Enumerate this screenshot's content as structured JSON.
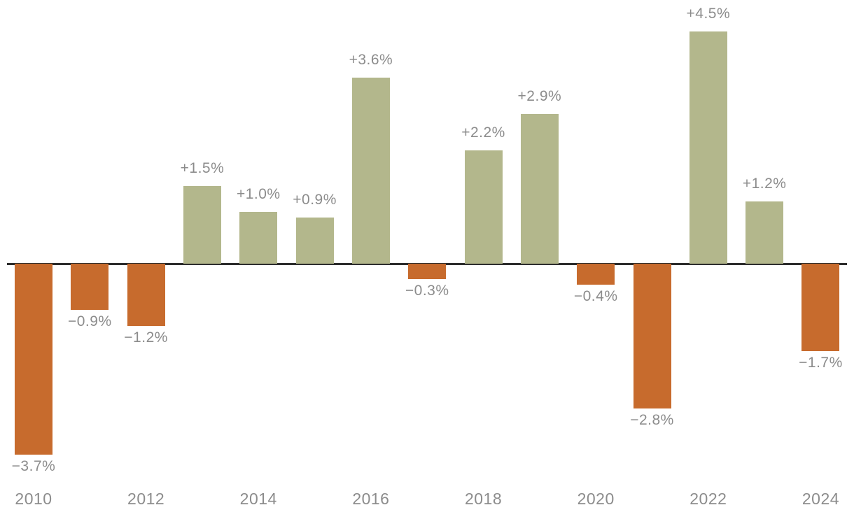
{
  "chart_data": {
    "type": "bar",
    "title": "",
    "xlabel": "",
    "ylabel": "",
    "x": [
      2010,
      2011,
      2012,
      2013,
      2014,
      2015,
      2016,
      2017,
      2018,
      2019,
      2020,
      2021,
      2022,
      2023,
      2024
    ],
    "values": [
      -3.7,
      -0.9,
      -1.2,
      1.5,
      1.0,
      0.9,
      3.6,
      -0.3,
      2.2,
      2.9,
      -0.4,
      -2.8,
      4.5,
      1.2,
      -1.7
    ],
    "value_labels": [
      "−3.7%",
      "−0.9%",
      "−1.2%",
      "+1.5%",
      "+1.0%",
      "+0.9%",
      "+3.6%",
      "−0.3%",
      "+2.2%",
      "+2.9%",
      "−0.4%",
      "−2.8%",
      "+4.5%",
      "+1.2%",
      "−1.7%"
    ],
    "x_tick_labels": [
      "2010",
      "2012",
      "2014",
      "2016",
      "2018",
      "2020",
      "2022",
      "2024"
    ],
    "x_tick_every": 2,
    "ylim": [
      -3.7,
      4.5
    ],
    "grid": false,
    "legend": false,
    "colors": {
      "positive": "#b3b78c",
      "negative": "#c76b2d",
      "label": "#8c8c8c",
      "baseline": "#2d2d2d",
      "background": "#ffffff"
    }
  }
}
